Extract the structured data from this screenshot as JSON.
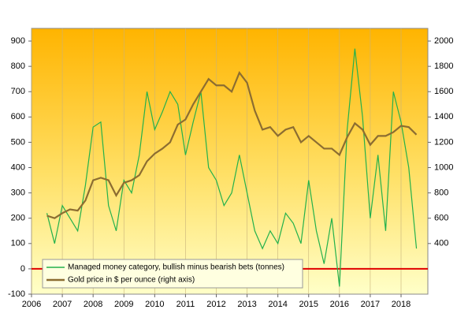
{
  "chart_data": {
    "type": "line",
    "x": [
      2006.5,
      2006.75,
      2007.0,
      2007.25,
      2007.5,
      2007.75,
      2008.0,
      2008.25,
      2008.5,
      2008.75,
      2009.0,
      2009.25,
      2009.5,
      2009.75,
      2010.0,
      2010.25,
      2010.5,
      2010.75,
      2011.0,
      2011.25,
      2011.5,
      2011.75,
      2012.0,
      2012.25,
      2012.5,
      2012.75,
      2013.0,
      2013.25,
      2013.5,
      2013.75,
      2014.0,
      2014.25,
      2014.5,
      2014.75,
      2015.0,
      2015.25,
      2015.5,
      2015.75,
      2016.0,
      2016.25,
      2016.5,
      2016.75,
      2017.0,
      2017.25,
      2017.5,
      2017.75,
      2018.0,
      2018.25,
      2018.5
    ],
    "series": [
      {
        "name": "Managed money category, bullish minus bearish bets (tonnes)",
        "color": "#22b14c",
        "values": [
          220,
          100,
          250,
          200,
          150,
          330,
          560,
          580,
          250,
          150,
          350,
          300,
          450,
          700,
          550,
          620,
          700,
          650,
          450,
          580,
          700,
          400,
          350,
          250,
          300,
          450,
          300,
          150,
          80,
          150,
          100,
          220,
          180,
          100,
          350,
          150,
          20,
          200,
          -70,
          550,
          870,
          600,
          200,
          450,
          150,
          700,
          580,
          400,
          80
        ]
      },
      {
        "name": "Gold price in $ per ounce (right axis)",
        "color": "#8c6d31",
        "axis": "y2",
        "values": [
          620,
          600,
          640,
          670,
          660,
          740,
          900,
          920,
          900,
          780,
          880,
          900,
          940,
          1050,
          1110,
          1150,
          1200,
          1340,
          1380,
          1500,
          1600,
          1700,
          1650,
          1650,
          1600,
          1750,
          1670,
          1450,
          1300,
          1320,
          1250,
          1300,
          1320,
          1200,
          1250,
          1200,
          1150,
          1150,
          1100,
          1240,
          1350,
          1300,
          1180,
          1250,
          1250,
          1280,
          1330,
          1320,
          1260
        ]
      }
    ],
    "xlim": [
      2006,
      2018.87
    ],
    "xticks": [
      2006,
      2007,
      2008,
      2009,
      2010,
      2011,
      2012,
      2013,
      2014,
      2015,
      2016,
      2017,
      2018
    ],
    "ylim": [
      -100,
      950
    ],
    "yticks": [
      -100,
      0,
      100,
      200,
      300,
      400,
      500,
      600,
      700,
      800,
      900
    ],
    "y2lim": [
      0,
      2100
    ],
    "y2ticks": [
      400,
      600,
      800,
      1000,
      1200,
      1400,
      1600,
      1800,
      2000
    ],
    "grid": true,
    "legend": "lower left",
    "zero_line_color": "#e00000"
  }
}
